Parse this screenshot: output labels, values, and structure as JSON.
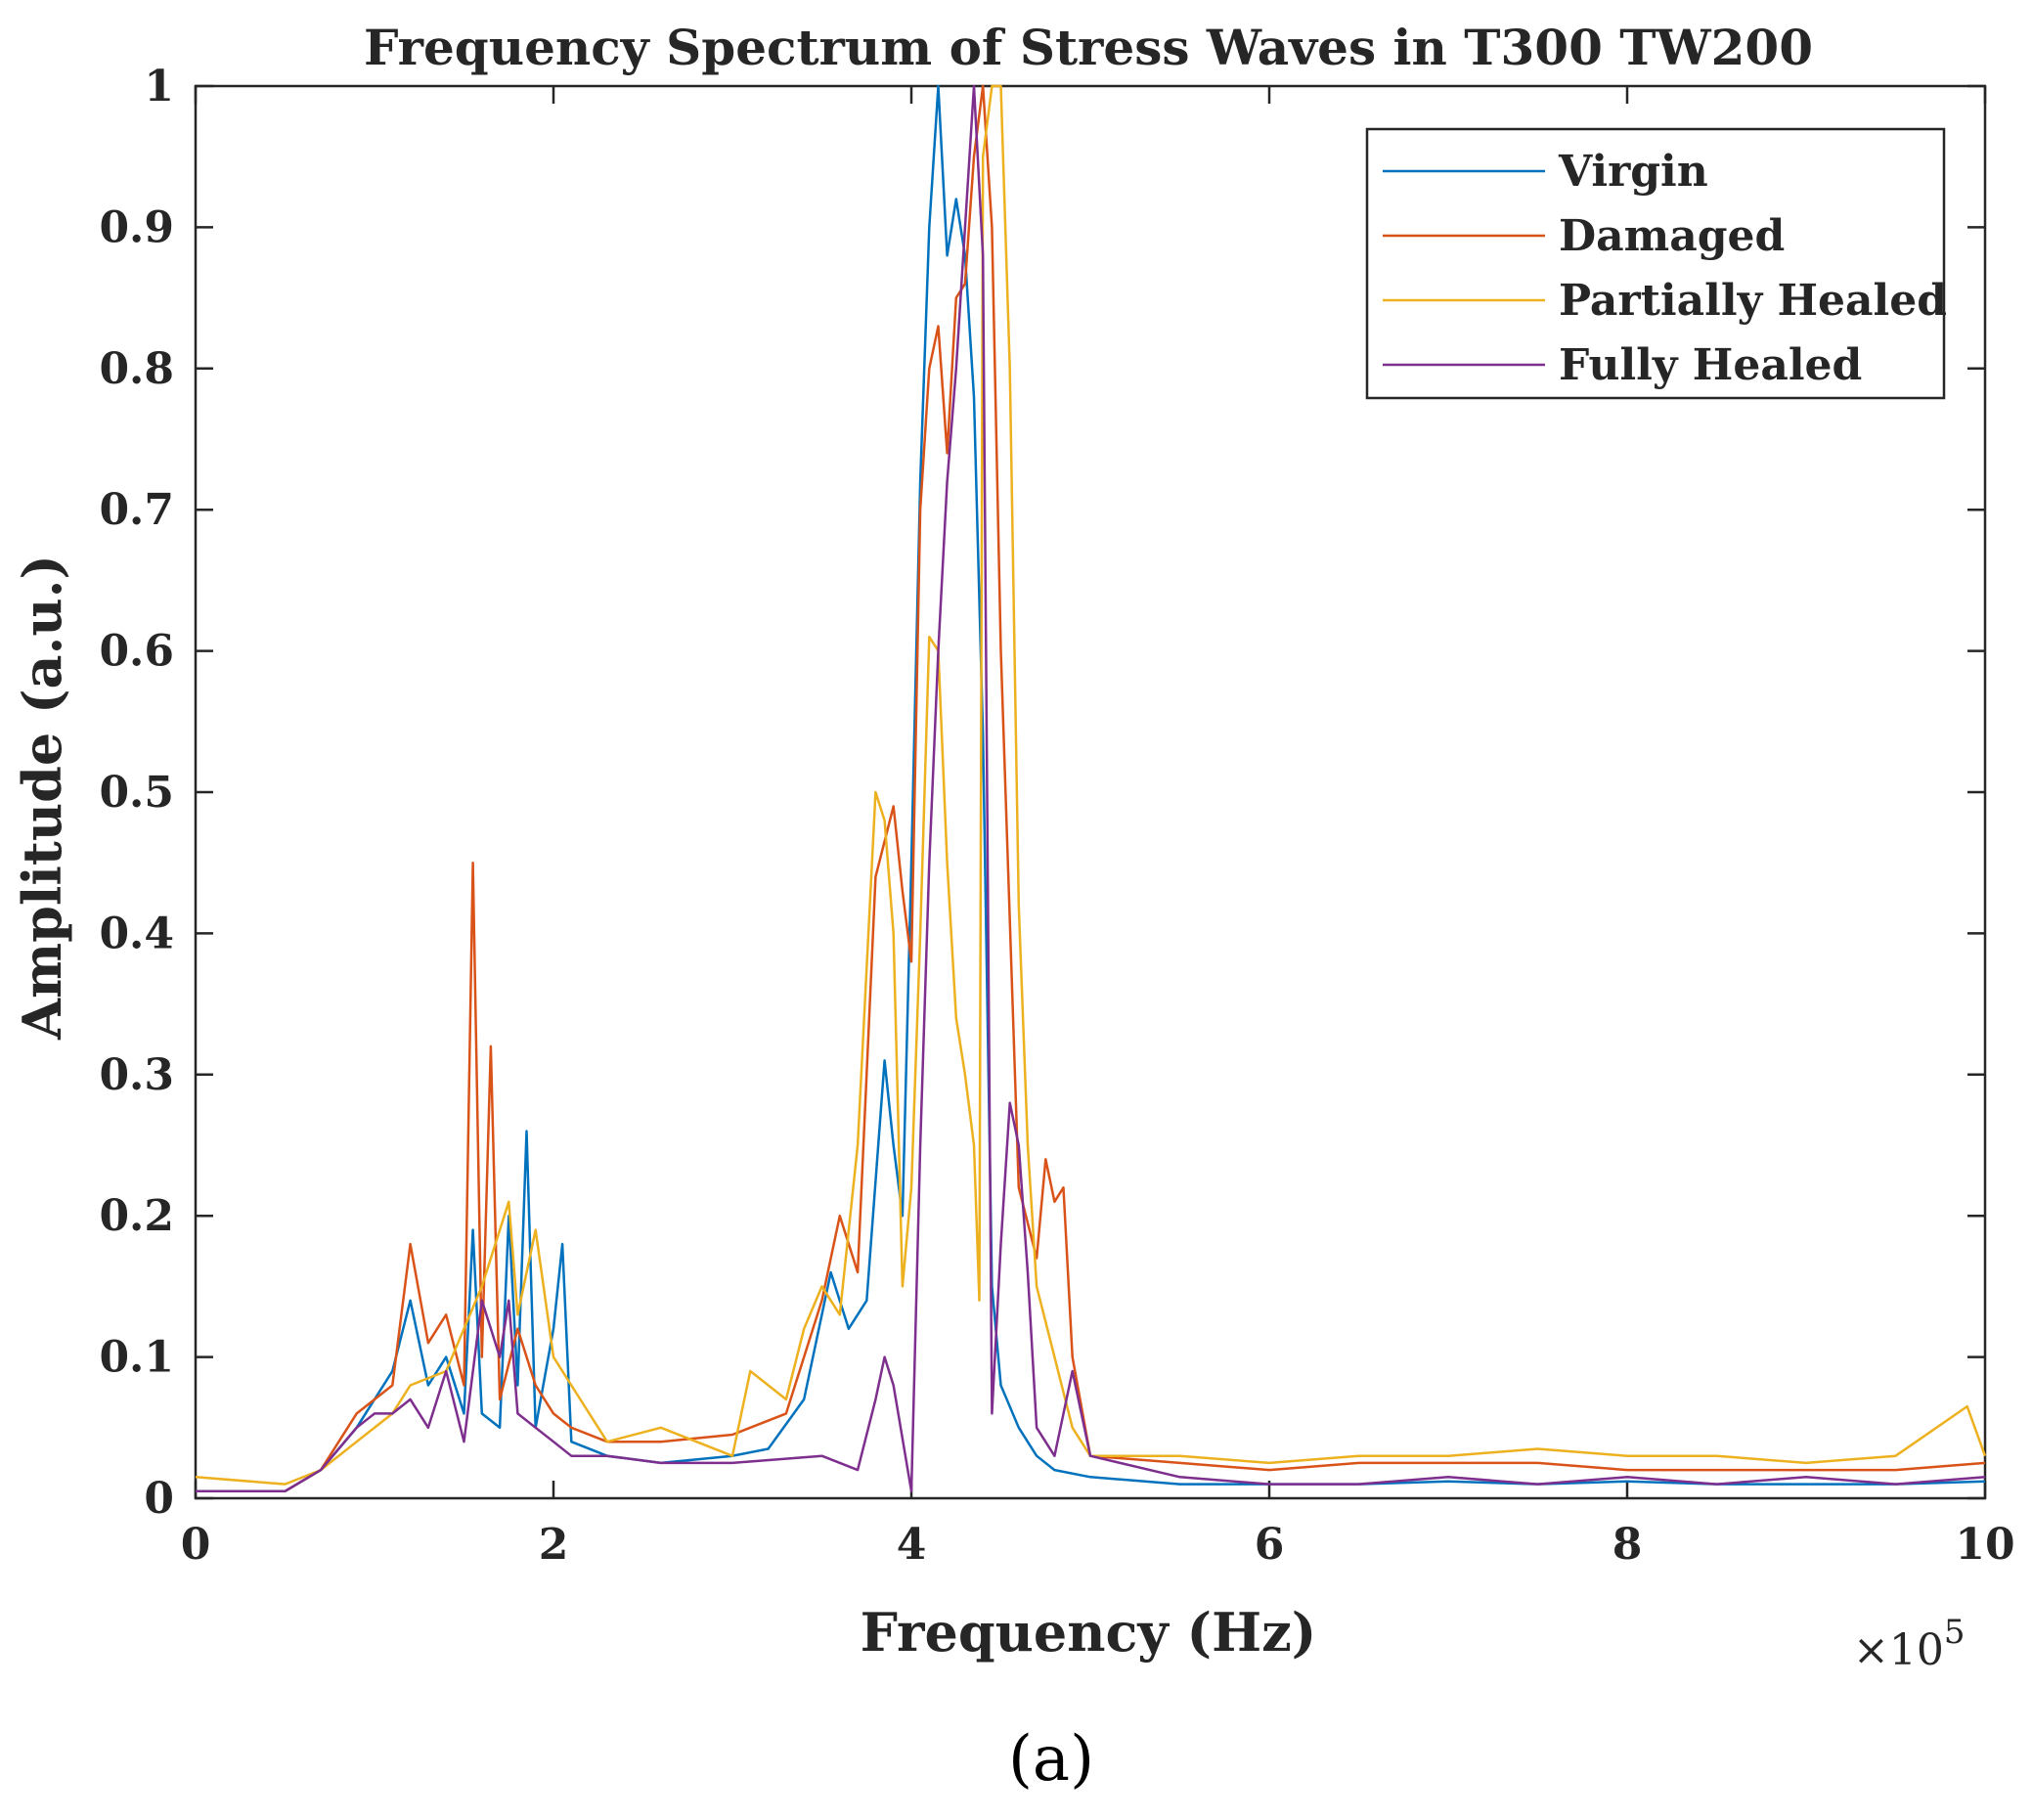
{
  "chart_data": {
    "type": "line",
    "title": "Frequency Spectrum of Stress Waves in T300 TW200",
    "xlabel": "Frequency (Hz)",
    "ylabel": "Amplitude (a.u.)",
    "x_multiplier_label": "×10",
    "x_multiplier_exponent": "5",
    "caption": "(a)",
    "xlim": [
      0,
      10
    ],
    "ylim": [
      0,
      1
    ],
    "xticks": [
      0,
      2,
      4,
      6,
      8,
      10
    ],
    "xtick_labels": [
      "0",
      "2",
      "4",
      "6",
      "8",
      "10"
    ],
    "yticks": [
      0,
      0.1,
      0.2,
      0.3,
      0.4,
      0.5,
      0.6,
      0.7,
      0.8,
      0.9,
      1
    ],
    "ytick_labels": [
      "0",
      "0.1",
      "0.2",
      "0.3",
      "0.4",
      "0.5",
      "0.6",
      "0.7",
      "0.8",
      "0.9",
      "1"
    ],
    "legend_position": "top-right",
    "series": [
      {
        "name": "Virgin",
        "color": "#0072BD",
        "x": [
          0,
          0.5,
          0.7,
          0.9,
          1.1,
          1.2,
          1.3,
          1.4,
          1.5,
          1.55,
          1.6,
          1.7,
          1.75,
          1.8,
          1.85,
          1.9,
          2.0,
          2.05,
          2.1,
          2.3,
          2.6,
          3.0,
          3.2,
          3.4,
          3.55,
          3.65,
          3.75,
          3.85,
          3.9,
          3.95,
          4.0,
          4.05,
          4.1,
          4.15,
          4.2,
          4.25,
          4.3,
          4.35,
          4.4,
          4.45,
          4.5,
          4.6,
          4.7,
          4.8,
          5.0,
          5.5,
          6,
          6.5,
          7,
          7.5,
          8,
          8.5,
          9,
          9.5,
          10
        ],
        "y": [
          0.005,
          0.005,
          0.02,
          0.05,
          0.09,
          0.14,
          0.08,
          0.1,
          0.06,
          0.19,
          0.06,
          0.05,
          0.2,
          0.08,
          0.26,
          0.05,
          0.12,
          0.18,
          0.04,
          0.03,
          0.025,
          0.03,
          0.035,
          0.07,
          0.16,
          0.12,
          0.14,
          0.31,
          0.25,
          0.2,
          0.45,
          0.72,
          0.9,
          1.0,
          0.88,
          0.92,
          0.88,
          0.78,
          0.54,
          0.15,
          0.08,
          0.05,
          0.03,
          0.02,
          0.015,
          0.01,
          0.01,
          0.01,
          0.012,
          0.01,
          0.012,
          0.01,
          0.01,
          0.01,
          0.012
        ]
      },
      {
        "name": "Damaged",
        "color": "#D95319",
        "x": [
          0,
          0.5,
          0.7,
          0.9,
          1.1,
          1.2,
          1.3,
          1.4,
          1.5,
          1.55,
          1.6,
          1.65,
          1.7,
          1.8,
          1.9,
          2.0,
          2.1,
          2.3,
          2.6,
          3.0,
          3.3,
          3.5,
          3.6,
          3.7,
          3.8,
          3.9,
          3.95,
          4.0,
          4.05,
          4.1,
          4.15,
          4.2,
          4.25,
          4.3,
          4.35,
          4.4,
          4.45,
          4.5,
          4.6,
          4.7,
          4.75,
          4.8,
          4.85,
          4.9,
          5.0,
          5.5,
          6,
          6.5,
          7,
          7.5,
          8,
          8.5,
          9,
          9.5,
          10
        ],
        "y": [
          0.005,
          0.005,
          0.02,
          0.06,
          0.08,
          0.18,
          0.11,
          0.13,
          0.08,
          0.45,
          0.1,
          0.32,
          0.07,
          0.12,
          0.08,
          0.06,
          0.05,
          0.04,
          0.04,
          0.045,
          0.06,
          0.14,
          0.2,
          0.16,
          0.44,
          0.49,
          0.43,
          0.38,
          0.7,
          0.8,
          0.83,
          0.74,
          0.85,
          0.86,
          0.95,
          1.0,
          0.9,
          0.6,
          0.22,
          0.17,
          0.24,
          0.21,
          0.22,
          0.1,
          0.03,
          0.025,
          0.02,
          0.025,
          0.025,
          0.025,
          0.02,
          0.02,
          0.02,
          0.02,
          0.025
        ]
      },
      {
        "name": "Partially Healed",
        "color": "#EDB120",
        "x": [
          0,
          0.5,
          0.7,
          0.9,
          1.1,
          1.2,
          1.4,
          1.6,
          1.75,
          1.8,
          1.9,
          2.0,
          2.1,
          2.3,
          2.6,
          3.0,
          3.1,
          3.3,
          3.4,
          3.5,
          3.6,
          3.7,
          3.8,
          3.85,
          3.9,
          3.95,
          4.0,
          4.05,
          4.1,
          4.15,
          4.2,
          4.25,
          4.3,
          4.35,
          4.38,
          4.4,
          4.45,
          4.5,
          4.55,
          4.6,
          4.65,
          4.7,
          4.8,
          4.9,
          5.0,
          5.5,
          6,
          6.5,
          7,
          7.5,
          8,
          8.5,
          9,
          9.5,
          9.9,
          10
        ],
        "y": [
          0.015,
          0.01,
          0.02,
          0.04,
          0.06,
          0.08,
          0.09,
          0.15,
          0.21,
          0.13,
          0.19,
          0.1,
          0.08,
          0.04,
          0.05,
          0.03,
          0.09,
          0.07,
          0.12,
          0.15,
          0.13,
          0.25,
          0.5,
          0.48,
          0.4,
          0.15,
          0.22,
          0.4,
          0.61,
          0.6,
          0.45,
          0.34,
          0.3,
          0.25,
          0.14,
          0.95,
          1.0,
          1.0,
          0.8,
          0.42,
          0.25,
          0.15,
          0.1,
          0.05,
          0.03,
          0.03,
          0.025,
          0.03,
          0.03,
          0.035,
          0.03,
          0.03,
          0.025,
          0.03,
          0.065,
          0.03
        ]
      },
      {
        "name": "Fully Healed",
        "color": "#7E2F8E",
        "x": [
          0,
          0.5,
          0.7,
          0.9,
          1.0,
          1.1,
          1.2,
          1.3,
          1.4,
          1.5,
          1.6,
          1.7,
          1.75,
          1.8,
          1.9,
          2.0,
          2.1,
          2.3,
          2.6,
          3.0,
          3.5,
          3.7,
          3.8,
          3.85,
          3.9,
          4.0,
          4.05,
          4.1,
          4.15,
          4.2,
          4.25,
          4.3,
          4.35,
          4.4,
          4.45,
          4.5,
          4.55,
          4.6,
          4.65,
          4.7,
          4.8,
          4.9,
          5.0,
          5.5,
          6,
          6.5,
          7,
          7.5,
          8,
          8.5,
          9,
          9.5,
          10
        ],
        "y": [
          0.005,
          0.005,
          0.02,
          0.05,
          0.06,
          0.06,
          0.07,
          0.05,
          0.09,
          0.04,
          0.14,
          0.1,
          0.14,
          0.06,
          0.05,
          0.04,
          0.03,
          0.03,
          0.025,
          0.025,
          0.03,
          0.02,
          0.07,
          0.1,
          0.08,
          0.005,
          0.25,
          0.45,
          0.6,
          0.72,
          0.8,
          0.9,
          1.0,
          0.88,
          0.06,
          0.18,
          0.28,
          0.25,
          0.16,
          0.05,
          0.03,
          0.09,
          0.03,
          0.015,
          0.01,
          0.01,
          0.015,
          0.01,
          0.015,
          0.01,
          0.015,
          0.01,
          0.015
        ]
      }
    ]
  }
}
